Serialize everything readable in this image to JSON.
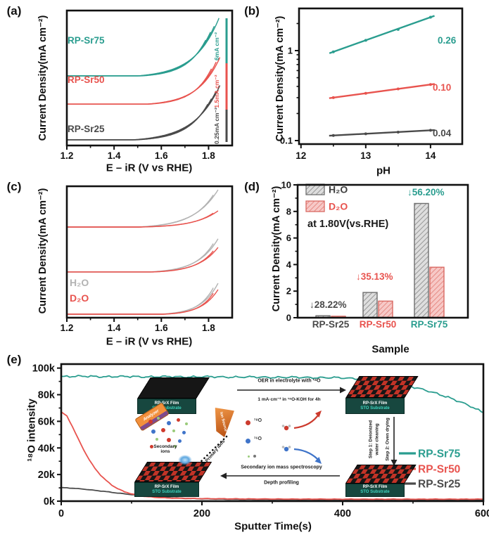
{
  "colors": {
    "teal": "#2a9d8f",
    "red": "#e8534e",
    "gray": "#4a4a4a",
    "light_gray": "#b3b3b3",
    "pink_fill": "#f7c9c7",
    "axis": "#111111"
  },
  "panels": {
    "a": {
      "letter": "(a)"
    },
    "b": {
      "letter": "(b)"
    },
    "c": {
      "letter": "(c)"
    },
    "d": {
      "letter": "(d)"
    },
    "e": {
      "letter": "(e)",
      "inset": {
        "film": "RP-SrX Film",
        "substrate": "STO Substrate",
        "oer_line1": "OER in electrolyte with ¹⁸O",
        "oer_line2": "1 mA·cm⁻² in ¹⁸O-KOH for 4h",
        "step1a": "Step 1: Deionized",
        "step1b": "water cleaning",
        "step2": "Step 2: Oven drying",
        "sims": "Secondary ion mass spectroscopy",
        "depth": "Depth profiling",
        "secondary1": "Secondary",
        "secondary2": "ions",
        "primary": "Primary ions",
        "analyzer": "Analyzer",
        "ion_source": "Ion Source",
        "o18": "¹⁸O",
        "o16": "¹⁶O"
      }
    }
  },
  "chart_data": [
    {
      "id": "a",
      "type": "line",
      "panel": "(a)",
      "xlabel": "E – iR (V vs RHE)",
      "ylabel": "Current Density(mA cm⁻²)",
      "xlim": [
        1.2,
        1.9
      ],
      "x_ticks": [
        1.2,
        1.4,
        1.6,
        1.8
      ],
      "x_minor_ticks": [
        1.3,
        1.5,
        1.7
      ],
      "series": [
        {
          "name": "RP-Sr75",
          "color": "#2a9d8f",
          "scale_bar_label": "6mA cm⁻²",
          "baseline_frac": 0.484,
          "peak_frac": 0.052,
          "onset_V": 1.5,
          "end_V": 1.845,
          "cycles": 4
        },
        {
          "name": "RP-Sr50",
          "color": "#e8534e",
          "scale_bar_label": "1.5mA cm⁻²",
          "baseline_frac": 0.693,
          "peak_frac": 0.339,
          "onset_V": 1.54,
          "end_V": 1.85,
          "cycles": 3
        },
        {
          "name": "RP-Sr25",
          "color": "#4a4a4a",
          "scale_bar_label": "0.25mA cm⁻²",
          "baseline_frac": 0.958,
          "peak_frac": 0.547,
          "onset_V": 1.48,
          "end_V": 1.85,
          "cycles": 4
        }
      ]
    },
    {
      "id": "b",
      "type": "scatter-line",
      "panel": "(b)",
      "xlabel": "pH",
      "ylabel": "Current Density(mA cm⁻²)",
      "xlim": [
        11.97,
        14.49
      ],
      "x_ticks": [
        12,
        13,
        14
      ],
      "x_minor_ticks": [
        12.5,
        13.5
      ],
      "y_scale": "log",
      "ylim": [
        0.09,
        2.9
      ],
      "y_ticks": [
        0.1,
        1
      ],
      "y_minor_ticks": [
        0.2,
        0.3,
        0.4,
        0.5,
        0.6,
        0.7,
        0.8,
        0.9,
        2
      ],
      "series": [
        {
          "name": "RP-Sr75",
          "slope_label": "0.26",
          "color": "#2a9d8f",
          "x": [
            12.5,
            13,
            13.5,
            14
          ],
          "y": [
            0.97,
            1.3,
            1.72,
            2.35
          ]
        },
        {
          "name": "RP-Sr50",
          "slope_label": "0.10",
          "color": "#e8534e",
          "x": [
            12.5,
            13,
            13.5,
            14
          ],
          "y": [
            0.3,
            0.335,
            0.375,
            0.42
          ]
        },
        {
          "name": "RP-Sr25",
          "slope_label": "0.04",
          "color": "#4a4a4a",
          "x": [
            12.5,
            13,
            13.5,
            14
          ],
          "y": [
            0.114,
            0.119,
            0.124,
            0.13
          ]
        }
      ]
    },
    {
      "id": "c",
      "type": "line",
      "panel": "(c)",
      "xlabel": "E – iR (V vs RHE)",
      "ylabel": "Current Density(mA cm⁻²)",
      "xlim": [
        1.2,
        1.9
      ],
      "x_ticks": [
        1.2,
        1.4,
        1.6,
        1.8
      ],
      "x_minor_ticks": [
        1.3,
        1.5,
        1.7
      ],
      "legend": [
        {
          "text": "H₂O",
          "color": "#b3b3b3"
        },
        {
          "text": "D₂O",
          "color": "#e8534e"
        }
      ],
      "pairs": [
        {
          "baseline_frac": 0.31,
          "h2o_peak_frac": 0.027,
          "d2o_peak_frac": 0.187,
          "onset_V": 1.5,
          "end_V": 1.84
        },
        {
          "baseline_frac": 0.652,
          "h2o_peak_frac": 0.4,
          "d2o_peak_frac": 0.465,
          "onset_V": 1.55,
          "end_V": 1.84
        },
        {
          "baseline_frac": 0.973,
          "h2o_peak_frac": 0.738,
          "d2o_peak_frac": 0.786,
          "onset_V": 1.6,
          "end_V": 1.84
        }
      ]
    },
    {
      "id": "d",
      "type": "bar",
      "panel": "(d)",
      "xlabel": "Sample",
      "ylabel": "Current Density(mA cm⁻²)",
      "ylim": [
        0,
        10
      ],
      "y_ticks": [
        0,
        2,
        4,
        6,
        8,
        10
      ],
      "note": "at 1.80V(vs.RHE)",
      "categories": [
        {
          "label": "RP-Sr25",
          "color": "#4a4a4a"
        },
        {
          "label": "RP-Sr50",
          "color": "#e8534e"
        },
        {
          "label": "RP-Sr75",
          "color": "#2a9d8f"
        }
      ],
      "series": [
        {
          "name": "H₂O",
          "values": [
            0.15,
            1.9,
            8.6
          ]
        },
        {
          "name": "D₂O",
          "values": [
            0.11,
            1.25,
            3.8
          ]
        }
      ],
      "annotations": [
        {
          "text": "↓28.22%",
          "color": "#4a4a4a"
        },
        {
          "text": "↓35.13%",
          "color": "#e8534e"
        },
        {
          "text": "↓56.20%",
          "color": "#2a9d8f"
        }
      ]
    },
    {
      "id": "e",
      "type": "line",
      "panel": "(e)",
      "xlabel": "Sputter Time(s)",
      "ylabel": "¹⁸O intensity",
      "xlim": [
        0,
        600
      ],
      "x_ticks": [
        0,
        200,
        400,
        600
      ],
      "x_minor_ticks": [
        100,
        300,
        500
      ],
      "ylim": [
        0,
        103
      ],
      "y_tick_values": [
        0,
        20,
        40,
        60,
        80,
        100
      ],
      "y_tick_labels": [
        "0k",
        "20k",
        "40k",
        "60k",
        "80k",
        "100k"
      ],
      "legend_position": "right",
      "series": [
        {
          "name": "RP-Sr75",
          "color": "#2a9d8f",
          "points": [
            [
              0,
              93.5
            ],
            [
              30,
              94
            ],
            [
              60,
              93.4
            ],
            [
              90,
              93.8
            ],
            [
              120,
              93.3
            ],
            [
              150,
              93.7
            ],
            [
              180,
              93.2
            ],
            [
              210,
              93.6
            ],
            [
              240,
              93.1
            ],
            [
              270,
              93.4
            ],
            [
              300,
              92.9
            ],
            [
              330,
              93.2
            ],
            [
              360,
              92.7
            ],
            [
              390,
              92.9
            ],
            [
              410,
              92.3
            ],
            [
              430,
              91.6
            ],
            [
              450,
              90.5
            ],
            [
              470,
              89
            ],
            [
              490,
              87
            ],
            [
              510,
              84.5
            ],
            [
              530,
              81.5
            ],
            [
              550,
              78
            ],
            [
              570,
              74
            ],
            [
              585,
              70.5
            ],
            [
              600,
              66.5
            ]
          ]
        },
        {
          "name": "RP-Sr50",
          "color": "#e8534e",
          "points": [
            [
              0,
              67
            ],
            [
              8,
              64
            ],
            [
              16,
              56
            ],
            [
              24,
              47
            ],
            [
              32,
              38.5
            ],
            [
              40,
              31
            ],
            [
              48,
              24.5
            ],
            [
              56,
              19.5
            ],
            [
              64,
              15.5
            ],
            [
              72,
              12
            ],
            [
              80,
              9.5
            ],
            [
              90,
              7
            ],
            [
              100,
              5.5
            ],
            [
              110,
              4.3
            ],
            [
              120,
              3.5
            ],
            [
              135,
              2.8
            ],
            [
              150,
              2.4
            ],
            [
              170,
              2.1
            ],
            [
              200,
              1.9
            ],
            [
              250,
              1.7
            ],
            [
              300,
              1.6
            ],
            [
              400,
              1.5
            ],
            [
              500,
              1.5
            ],
            [
              600,
              1.5
            ]
          ]
        },
        {
          "name": "RP-Sr25",
          "color": "#4a4a4a",
          "points": [
            [
              0,
              10.2
            ],
            [
              20,
              9.6
            ],
            [
              40,
              8.6
            ],
            [
              60,
              7.4
            ],
            [
              80,
              6.1
            ],
            [
              100,
              4.9
            ],
            [
              120,
              3.9
            ],
            [
              140,
              3.1
            ],
            [
              160,
              2.5
            ],
            [
              180,
              2.1
            ],
            [
              200,
              1.8
            ],
            [
              230,
              1.5
            ],
            [
              260,
              1.3
            ],
            [
              300,
              1.15
            ],
            [
              350,
              1.05
            ],
            [
              400,
              1
            ],
            [
              500,
              0.95
            ],
            [
              600,
              0.95
            ]
          ]
        }
      ]
    }
  ]
}
